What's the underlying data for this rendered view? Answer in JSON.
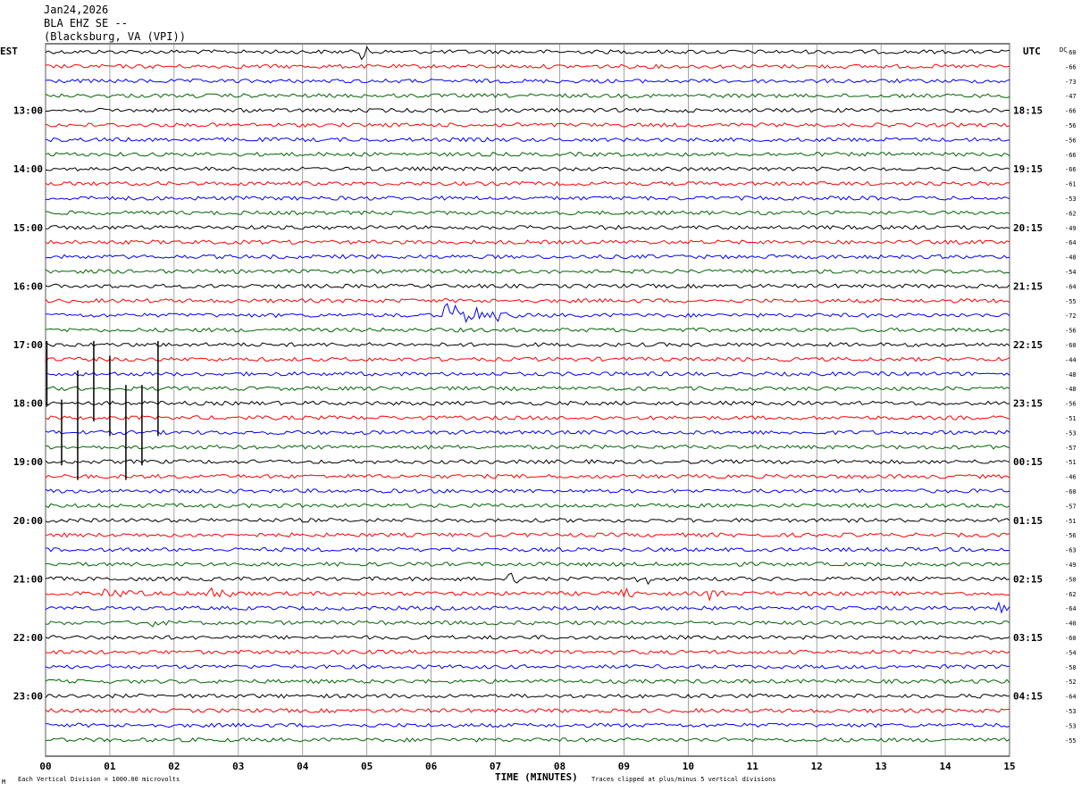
{
  "header": {
    "date": "Jan24,2026",
    "station": "BLA EHZ SE --",
    "location": "(Blacksburg, VA (VPI))"
  },
  "left_axis_label": "EST",
  "right_axis_label": "UTC",
  "dc_label": "DC",
  "footer": {
    "scale_note": "Each Vertical Division = 1000.00 microvolts",
    "clip_note": "Traces clipped at plus/minus 5 vertical divisions",
    "corner_mark": "M"
  },
  "colors": {
    "trace_cycle": [
      "#000000",
      "#ff0000",
      "#0000ff",
      "#006400"
    ],
    "grid": "#7f7f7f",
    "background": "#ffffff"
  },
  "chart_data": {
    "type": "line",
    "subtype": "helicorder",
    "xlabel": "TIME (MINUTES)",
    "xlim": [
      0,
      15
    ],
    "x_ticks": [
      "00",
      "01",
      "02",
      "03",
      "04",
      "05",
      "06",
      "07",
      "08",
      "09",
      "10",
      "11",
      "12",
      "13",
      "14",
      "15"
    ],
    "rows_per_hour": 4,
    "minutes_per_row": 15,
    "est_hour_labels": [
      "13:00",
      "14:00",
      "15:00",
      "16:00",
      "17:00",
      "18:00",
      "19:00",
      "20:00",
      "21:00",
      "22:00",
      "23:00"
    ],
    "utc_hour_labels": [
      "18:15",
      "19:15",
      "20:15",
      "21:15",
      "22:15",
      "23:15",
      "00:15",
      "01:15",
      "02:15",
      "03:15",
      "04:15"
    ],
    "dc_offsets": [
      -60,
      -66,
      -73,
      -47,
      -66,
      -56,
      -56,
      -66,
      -66,
      -61,
      -53,
      -62,
      -49,
      -64,
      -48,
      -54,
      -64,
      -55,
      -72,
      -56,
      -60,
      -44,
      -48,
      -48,
      -56,
      -51,
      -53,
      -57,
      -51,
      -46,
      -60,
      -57,
      -51,
      -56,
      -63,
      -49,
      -50,
      -62,
      -64,
      -40,
      -60,
      -54,
      -58,
      -52,
      -64,
      -53,
      -53,
      -55
    ],
    "events": [
      {
        "row": 0,
        "minute": 4.9,
        "duration": 0.25,
        "amplitude": 1.3
      },
      {
        "row": 5,
        "minute": 7.3,
        "duration": 0.15,
        "amplitude": 0.8
      },
      {
        "row": 18,
        "minute": 6.2,
        "duration": 1.3,
        "amplitude": 2.3
      },
      {
        "row": 36,
        "minute": 7.2,
        "duration": 0.4,
        "amplitude": 1.2
      },
      {
        "row": 36,
        "minute": 9.2,
        "duration": 0.5,
        "amplitude": 1.1
      },
      {
        "row": 37,
        "minute": 0.8,
        "duration": 0.9,
        "amplitude": 1.1
      },
      {
        "row": 37,
        "minute": 2.5,
        "duration": 0.6,
        "amplitude": 1.3
      },
      {
        "row": 37,
        "minute": 8.9,
        "duration": 0.4,
        "amplitude": 1.5
      },
      {
        "row": 37,
        "minute": 10.3,
        "duration": 0.4,
        "amplitude": 1.0
      },
      {
        "row": 38,
        "minute": 14.8,
        "duration": 0.2,
        "amplitude": 1.3
      },
      {
        "row": 39,
        "minute": 1.6,
        "duration": 0.4,
        "amplitude": 1.0
      },
      {
        "row": 39,
        "minute": 12.2,
        "duration": 0.1,
        "amplitude": 0.8
      },
      {
        "row": 40,
        "minute": 0.05,
        "duration": 0.3,
        "amplitude": 0.9
      }
    ],
    "spikes": [
      {
        "minute": 0.02,
        "from_row": 20,
        "to_row": 24
      },
      {
        "minute": 0.25,
        "from_row": 24,
        "to_row": 28
      },
      {
        "minute": 0.5,
        "from_row": 22,
        "to_row": 29
      },
      {
        "minute": 0.75,
        "from_row": 20,
        "to_row": 25
      },
      {
        "minute": 1.0,
        "from_row": 21,
        "to_row": 26
      },
      {
        "minute": 1.25,
        "from_row": 23,
        "to_row": 29
      },
      {
        "minute": 1.5,
        "from_row": 23,
        "to_row": 28
      },
      {
        "minute": 1.75,
        "from_row": 20,
        "to_row": 26
      }
    ]
  }
}
